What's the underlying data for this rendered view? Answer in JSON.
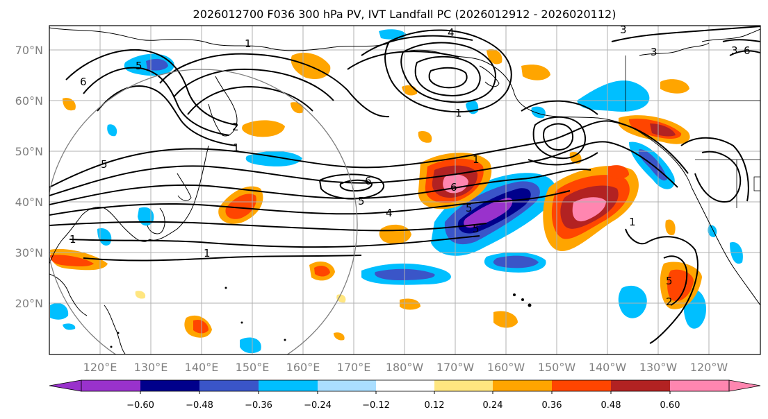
{
  "title": "2026012700 F036 300 hPa PV, IVT Landfall PC (2026012912 - 2026020112)",
  "map": {
    "lat_range": [
      10,
      75
    ],
    "lon_range_east": [
      110,
      250
    ],
    "lat_labels": [
      "70°N",
      "60°N",
      "50°N",
      "40°N",
      "30°N",
      "20°N"
    ],
    "lat_values": [
      70,
      60,
      50,
      40,
      30,
      20
    ],
    "lon_labels": [
      "120°E",
      "130°E",
      "140°E",
      "150°E",
      "160°E",
      "170°E",
      "180°W",
      "170°W",
      "160°W",
      "150°W",
      "140°W",
      "130°W",
      "120°W"
    ],
    "lon_values": [
      120,
      130,
      140,
      150,
      160,
      170,
      180,
      190,
      200,
      210,
      220,
      230,
      240
    ],
    "gridlines": true,
    "ring": {
      "center_lon": 141,
      "center_lat": 40,
      "color": "#808080"
    },
    "contour_labels": [
      "1",
      "1",
      "1",
      "1",
      "1",
      "1",
      "1",
      "2",
      "2",
      "3",
      "3",
      "3",
      "4",
      "4",
      "5",
      "5",
      "5",
      "5",
      "5",
      "5",
      "6",
      "6",
      "6",
      "6"
    ]
  },
  "colorbar": {
    "tick_labels": [
      "−0.60",
      "−0.48",
      "−0.36",
      "−0.24",
      "−0.12",
      "0.12",
      "0.24",
      "0.36",
      "0.48",
      "0.60"
    ],
    "tick_values": [
      -0.6,
      -0.48,
      -0.36,
      -0.24,
      -0.12,
      0.12,
      0.24,
      0.36,
      0.48,
      0.6
    ],
    "under_color": "#9932cc",
    "over_color": "#ff86b0",
    "colors": [
      "#9932cc",
      "#00008b",
      "#3a55c8",
      "#00bfff",
      "#aadeff",
      "#ffffff",
      "#ffe680",
      "#ffa500",
      "#ff4500",
      "#b22222",
      "#ff86b0"
    ],
    "extend": "both"
  }
}
